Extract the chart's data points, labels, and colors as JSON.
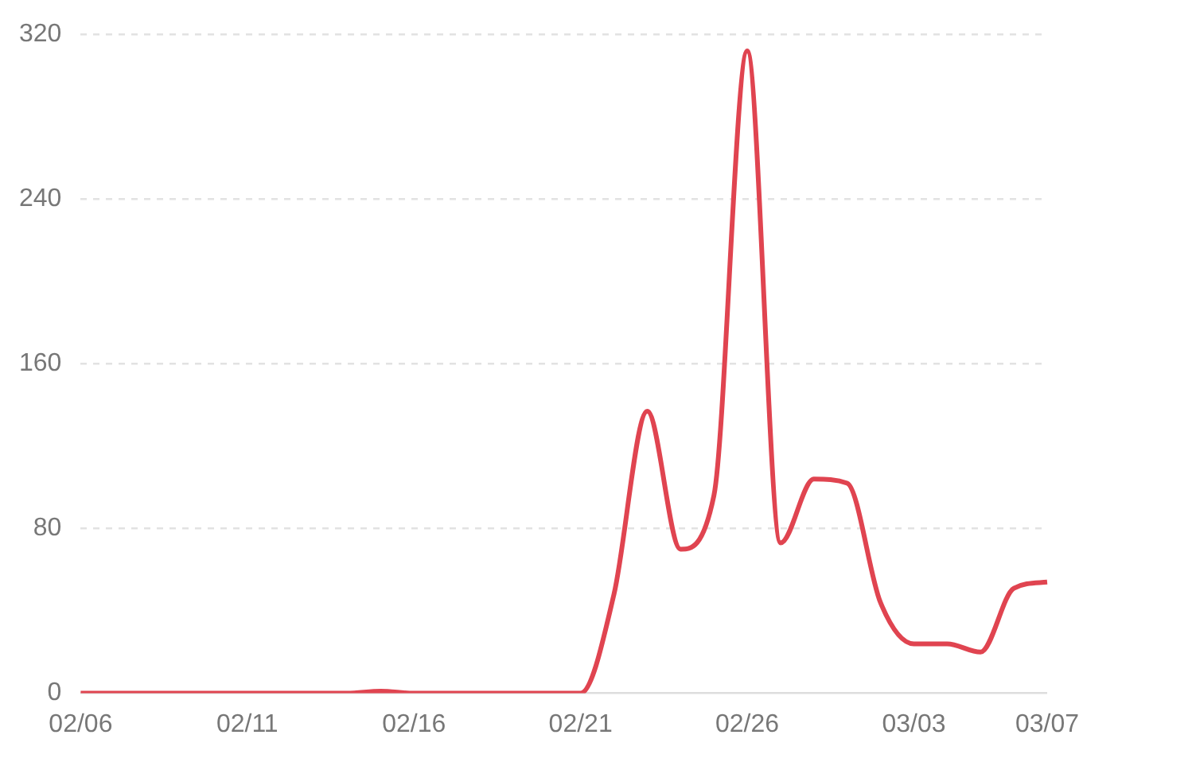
{
  "chart_data": {
    "type": "line",
    "categories": [
      "02/06",
      null,
      null,
      null,
      null,
      "02/11",
      null,
      null,
      null,
      null,
      "02/16",
      null,
      null,
      null,
      null,
      "02/21",
      null,
      null,
      null,
      null,
      "02/26",
      null,
      null,
      null,
      null,
      "03/03",
      null,
      null,
      null,
      "03/07"
    ],
    "series": [
      {
        "color": "#e04450",
        "values": [
          0,
          0,
          0,
          0,
          0,
          0,
          0,
          0,
          0,
          1,
          0,
          0,
          0,
          0,
          0,
          0,
          48,
          137,
          70,
          96,
          312,
          73,
          104,
          102,
          44,
          24,
          24,
          20,
          51,
          54
        ]
      }
    ],
    "ylim": [
      0,
      320
    ],
    "yticks": [
      0,
      80,
      160,
      240,
      320
    ],
    "grid": "y",
    "legend": false,
    "marker": "none",
    "line_style": "solid"
  }
}
